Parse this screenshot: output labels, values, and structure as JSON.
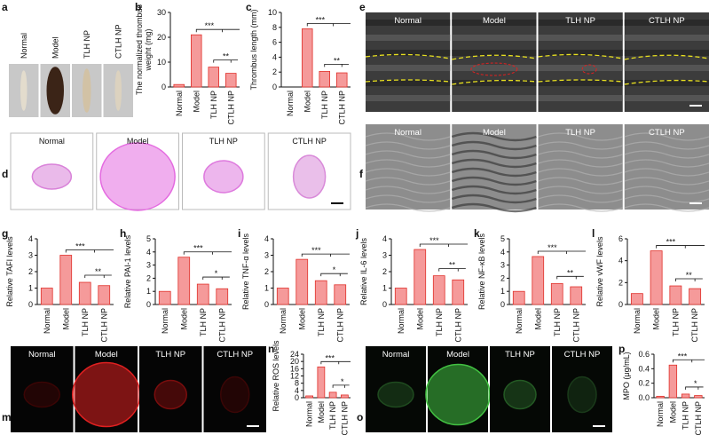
{
  "figure": {
    "panels": [
      {
        "label": "a",
        "images": [
          "Normal",
          "Model",
          "TLH NP",
          "CTLH NP"
        ]
      },
      {
        "label": "d",
        "images": [
          "Normal",
          "Model",
          "TLH NP",
          "CTLH NP"
        ]
      },
      {
        "label": "e",
        "images": [
          "Normal",
          "Model",
          "TLH NP",
          "CTLH NP"
        ]
      },
      {
        "label": "f",
        "images": [
          "Normal",
          "Model",
          "TLH NP",
          "CTLH NP"
        ]
      },
      {
        "label": "m",
        "images": [
          "Normal",
          "Model",
          "TLH NP",
          "CTLH NP"
        ]
      },
      {
        "label": "o",
        "images": [
          "Normal",
          "Model",
          "TLH NP",
          "CTLH NP"
        ]
      }
    ]
  },
  "chart_data": [
    {
      "type": "bar",
      "label": "b",
      "ylabel": [
        "The normalized thrombus",
        "weight (mg)"
      ],
      "categories": [
        "Normal",
        "Model",
        "TLH NP",
        "CTLH NP"
      ],
      "values": [
        1,
        21,
        8,
        5.5
      ],
      "color": "#f59a9a",
      "ylim": [
        0,
        30
      ],
      "yticks": [
        0,
        10,
        20,
        30
      ],
      "annotations": [
        "***",
        "**"
      ]
    },
    {
      "type": "bar",
      "label": "c",
      "ylabel": "Thrombus length (mm)",
      "categories": [
        "Normal",
        "Model",
        "TLH NP",
        "CTLH NP"
      ],
      "values": [
        0,
        7.8,
        2.1,
        1.9
      ],
      "color": "#f59a9a",
      "ylim": [
        0,
        10
      ],
      "yticks": [
        0,
        2,
        4,
        6,
        8,
        10
      ],
      "annotations": [
        "***",
        "**"
      ]
    },
    {
      "type": "bar",
      "label": "g",
      "ylabel": "Relative TAFI levels",
      "categories": [
        "Normal",
        "Model",
        "TLH NP",
        "CTLH NP"
      ],
      "values": [
        1,
        3.0,
        1.35,
        1.15
      ],
      "color": "#f59a9a",
      "ylim": [
        0,
        4
      ],
      "yticks": [
        0,
        1,
        2,
        3,
        4
      ],
      "annotations": [
        "***",
        "**"
      ]
    },
    {
      "type": "bar",
      "label": "h",
      "ylabel": "Relative PAI-1 levels",
      "categories": [
        "Normal",
        "Model",
        "TLH NP",
        "CTLH NP"
      ],
      "values": [
        1,
        3.6,
        1.55,
        1.2
      ],
      "color": "#f59a9a",
      "ylim": [
        0,
        5
      ],
      "yticks": [
        0,
        1,
        2,
        3,
        4,
        5
      ],
      "annotations": [
        "***",
        "*"
      ]
    },
    {
      "type": "bar",
      "label": "i",
      "ylabel": "Relative TNF-α levels",
      "categories": [
        "Normal",
        "Model",
        "TLH NP",
        "CTLH NP"
      ],
      "values": [
        1,
        2.75,
        1.45,
        1.2
      ],
      "color": "#f59a9a",
      "ylim": [
        0,
        4
      ],
      "yticks": [
        0,
        1,
        2,
        3,
        4
      ],
      "annotations": [
        "***",
        "*"
      ]
    },
    {
      "type": "bar",
      "label": "j",
      "ylabel": "Relative IL-6 levels",
      "categories": [
        "Normal",
        "Model",
        "TLH NP",
        "CTLH NP"
      ],
      "values": [
        1,
        3.35,
        1.75,
        1.5
      ],
      "color": "#f59a9a",
      "ylim": [
        0,
        4
      ],
      "yticks": [
        0,
        1,
        2,
        3,
        4
      ],
      "annotations": [
        "***",
        "**"
      ]
    },
    {
      "type": "bar",
      "label": "k",
      "ylabel": "Relative NF-κB levels",
      "categories": [
        "Normal",
        "Model",
        "TLH NP",
        "CTLH NP"
      ],
      "values": [
        1,
        3.65,
        1.6,
        1.35
      ],
      "color": "#f59a9a",
      "ylim": [
        0,
        5
      ],
      "yticks": [
        0,
        1,
        2,
        3,
        4,
        5
      ],
      "annotations": [
        "***",
        "**"
      ]
    },
    {
      "type": "bar",
      "label": "l",
      "ylabel": "Relative vWF levels",
      "categories": [
        "Normal",
        "Model",
        "TLH NP",
        "CTLH NP"
      ],
      "values": [
        1,
        4.9,
        1.7,
        1.45
      ],
      "color": "#f59a9a",
      "ylim": [
        0,
        6
      ],
      "yticks": [
        0,
        2,
        4,
        6
      ],
      "annotations": [
        "***",
        "**"
      ]
    },
    {
      "type": "bar",
      "label": "n",
      "ylabel": "Relative ROS levels",
      "categories": [
        "Normal",
        "Model",
        "TLH NP",
        "CTLH NP"
      ],
      "values": [
        1,
        17,
        3,
        1.5
      ],
      "color": "#f59a9a",
      "ylim": [
        0,
        24
      ],
      "yticks": [
        0,
        4,
        8,
        12,
        16,
        20,
        24
      ],
      "annotations": [
        "***",
        "*"
      ]
    },
    {
      "type": "bar",
      "label": "p",
      "ylabel": "MPO (μg/mL)",
      "categories": [
        "Normal",
        "Model",
        "TLH NP",
        "CTLH NP"
      ],
      "values": [
        0.02,
        0.45,
        0.05,
        0.03
      ],
      "color": "#f59a9a",
      "ylim": [
        0,
        0.6
      ],
      "yticks": [
        {
          "value": 0,
          "label": "0.0"
        },
        0.2,
        0.4,
        0.6
      ],
      "annotations": [
        "***",
        "*"
      ]
    }
  ]
}
